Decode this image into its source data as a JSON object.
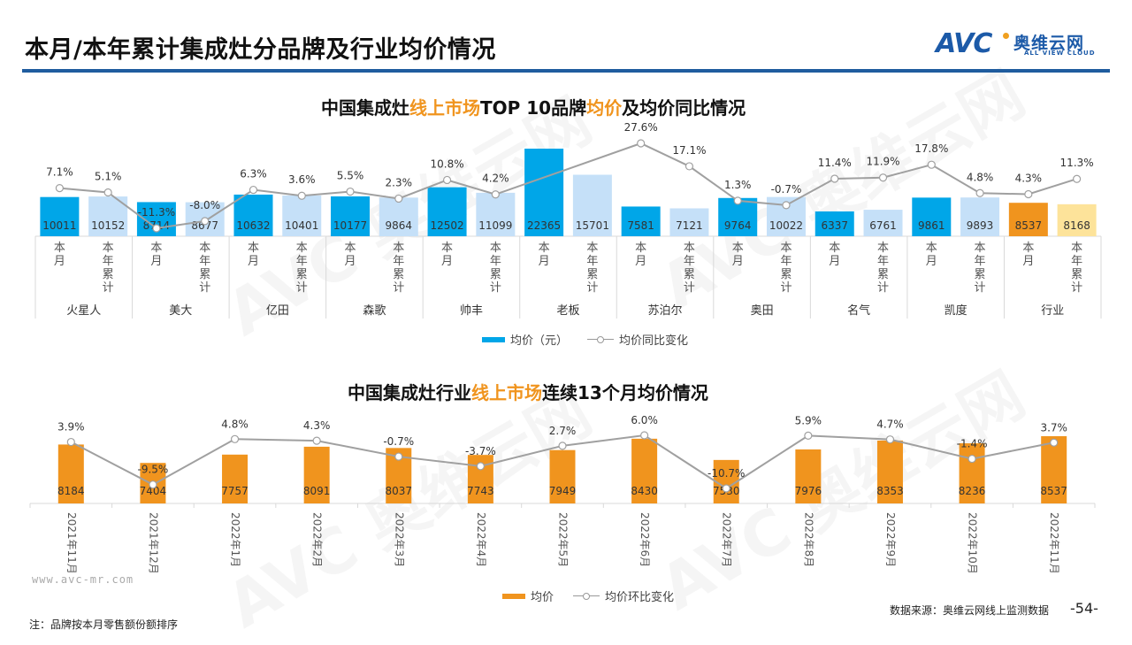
{
  "page": {
    "title": "本月/本年累计集成灶分品牌及行业均价情况",
    "logo": {
      "brand": "AVC",
      "cn": "奥维云网",
      "en": "ALL VIEW CLOUD"
    },
    "watermark": "AVC 奥维云网",
    "footer": {
      "url": "www.avc-mr.com",
      "note": "注：品牌按本月零售额份额排序",
      "source": "数据来源：奥维云网线上监测数据",
      "page_number": "-54-"
    },
    "colors": {
      "title_rule": "#1f5c9e",
      "month_bar": "#00a6e8",
      "ytd_bar": "#c5e0f8",
      "industry_month_bar": "#f0941e",
      "industry_ytd_bar": "#fde39a",
      "trend_bar": "#f0941e",
      "line": "#a0a0a0",
      "highlight_text": "#f0941e"
    }
  },
  "chart_data": [
    {
      "type": "bar",
      "title_parts": [
        {
          "text": "中国集成灶",
          "hl": false
        },
        {
          "text": "线上市场",
          "hl": true
        },
        {
          "text": "TOP 10品牌",
          "hl": false
        },
        {
          "text": "均价",
          "hl": true
        },
        {
          "text": "及均价同比情况",
          "hl": false
        }
      ],
      "brands": [
        "火星人",
        "美大",
        "亿田",
        "森歌",
        "帅丰",
        "老板",
        "苏泊尔",
        "奥田",
        "名气",
        "凯度",
        "行业"
      ],
      "sub_categories": [
        "本月",
        "本年累计"
      ],
      "series": [
        {
          "name": "均价（元）",
          "kind": "bar",
          "values": [
            10011,
            10152,
            8714,
            8677,
            10632,
            10401,
            10177,
            9864,
            12502,
            11099,
            22365,
            15701,
            7581,
            7121,
            9764,
            10022,
            6337,
            6761,
            9861,
            9893,
            8537,
            8168
          ]
        },
        {
          "name": "均价同比变化",
          "kind": "line",
          "values": [
            7.1,
            5.1,
            -11.3,
            -8.0,
            6.3,
            3.6,
            5.5,
            2.3,
            10.8,
            4.2,
            null,
            null,
            27.6,
            17.1,
            1.3,
            -0.7,
            11.4,
            11.9,
            17.8,
            4.8,
            4.3,
            11.3
          ],
          "labels": [
            "7.1%",
            "5.1%",
            "-11.3%",
            "-8.0%",
            "6.3%",
            "3.6%",
            "5.5%",
            "2.3%",
            "10.8%",
            "4.2%",
            "",
            "",
            "27.6%",
            "17.1%",
            "1.3%",
            "-0.7%",
            "11.4%",
            "11.9%",
            "17.8%",
            "4.8%",
            "4.3%",
            "11.3%"
          ]
        }
      ],
      "legend": [
        "均价（元）",
        "均价同比变化"
      ],
      "legend_position": "bottom",
      "grid": false
    },
    {
      "type": "bar",
      "title_parts": [
        {
          "text": "中国集成灶行业",
          "hl": false
        },
        {
          "text": "线上市场",
          "hl": true
        },
        {
          "text": "连续13个月均价情况",
          "hl": false
        }
      ],
      "categories": [
        "2021年11月",
        "2021年12月",
        "2022年1月",
        "2022年2月",
        "2022年3月",
        "2022年4月",
        "2022年5月",
        "2022年6月",
        "2022年7月",
        "2022年8月",
        "2022年9月",
        "2022年10月",
        "2022年11月"
      ],
      "series": [
        {
          "name": "均价",
          "kind": "bar",
          "values": [
            8184,
            7404,
            7757,
            8091,
            8037,
            7743,
            7949,
            8430,
            7530,
            7976,
            8353,
            8236,
            8537
          ]
        },
        {
          "name": "均价环比变化",
          "kind": "line",
          "values": [
            3.9,
            -9.5,
            4.8,
            4.3,
            -0.7,
            -3.7,
            2.7,
            6.0,
            -10.7,
            5.9,
            4.7,
            -1.4,
            3.7
          ],
          "labels": [
            "3.9%",
            "-9.5%",
            "4.8%",
            "4.3%",
            "-0.7%",
            "-3.7%",
            "2.7%",
            "6.0%",
            "-10.7%",
            "5.9%",
            "4.7%",
            "-1.4%",
            "3.7%"
          ]
        }
      ],
      "legend": [
        "均价",
        "均价环比变化"
      ],
      "legend_position": "bottom",
      "grid": false
    }
  ]
}
